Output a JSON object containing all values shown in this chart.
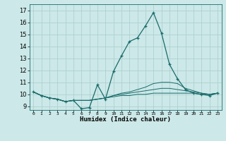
{
  "xlabel": "Humidex (Indice chaleur)",
  "bg_color": "#cce8e8",
  "grid_color": "#aacccc",
  "line_color": "#1a6b6b",
  "xlim": [
    -0.5,
    23.5
  ],
  "ylim": [
    8.7,
    17.5
  ],
  "yticks": [
    9,
    10,
    11,
    12,
    13,
    14,
    15,
    16,
    17
  ],
  "xticks": [
    0,
    1,
    2,
    3,
    4,
    5,
    6,
    7,
    8,
    9,
    10,
    11,
    12,
    13,
    14,
    15,
    16,
    17,
    18,
    19,
    20,
    21,
    22,
    23
  ],
  "series": [
    [
      10.2,
      9.9,
      9.7,
      9.6,
      9.4,
      9.5,
      8.8,
      8.9,
      10.8,
      9.6,
      11.9,
      13.2,
      14.4,
      14.7,
      15.7,
      16.8,
      15.1,
      12.5,
      11.3,
      10.4,
      10.1,
      10.0,
      9.9,
      10.1
    ],
    [
      10.2,
      9.9,
      9.7,
      9.6,
      9.4,
      9.5,
      9.5,
      9.5,
      9.6,
      9.7,
      9.9,
      10.1,
      10.2,
      10.4,
      10.6,
      10.9,
      11.0,
      11.0,
      10.9,
      10.5,
      10.3,
      10.1,
      10.0,
      10.1
    ],
    [
      10.2,
      9.9,
      9.7,
      9.6,
      9.4,
      9.5,
      9.5,
      9.5,
      9.6,
      9.7,
      9.9,
      10.0,
      10.1,
      10.2,
      10.3,
      10.4,
      10.5,
      10.5,
      10.4,
      10.3,
      10.2,
      10.1,
      10.0,
      10.1
    ],
    [
      10.2,
      9.9,
      9.7,
      9.6,
      9.4,
      9.5,
      9.5,
      9.5,
      9.6,
      9.7,
      9.8,
      9.9,
      9.9,
      10.0,
      10.0,
      10.1,
      10.1,
      10.1,
      10.1,
      10.1,
      10.1,
      10.0,
      10.0,
      10.1
    ]
  ]
}
